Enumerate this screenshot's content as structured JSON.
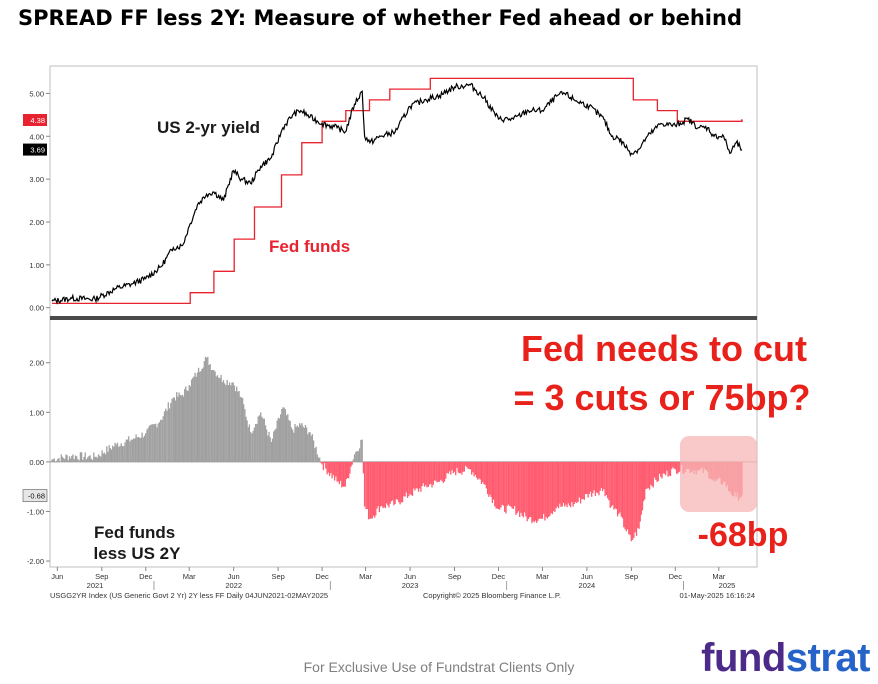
{
  "title": "SPREAD FF less 2Y: Measure of whether Fed ahead or behind",
  "footer": "For Exclusive Use of Fundstrat Clients Only",
  "logo": {
    "part1": "fund",
    "part2": "strat"
  },
  "colors": {
    "fed_funds": "#e8222e",
    "yield": "#000000",
    "positive": "#a0a0a0",
    "negative": "#ff5a6e",
    "annotation": "#e8221b",
    "highlight": "#f5b7b5"
  },
  "chart_data": [
    {
      "type": "line",
      "labels": {
        "yield": "US 2-yr yield",
        "fed_funds": "Fed funds"
      },
      "ylim": [
        -0.1,
        5.5
      ],
      "yticks": [
        "0.00",
        "1.00",
        "2.00",
        "3.00",
        "4.00",
        "5.00"
      ],
      "last_value_tags": [
        {
          "label": "4.38",
          "value": 4.38,
          "color": "#e8222e"
        },
        {
          "label": "3.69",
          "value": 3.69,
          "color": "#000000"
        }
      ],
      "series": [
        {
          "name": "US 2-yr yield",
          "x": [
            "2021-06-04",
            "2021-07-15",
            "2021-09-01",
            "2021-10-15",
            "2021-11-15",
            "2021-12-15",
            "2022-01-15",
            "2022-02-10",
            "2022-03-01",
            "2022-03-15",
            "2022-04-01",
            "2022-04-20",
            "2022-05-05",
            "2022-05-25",
            "2022-06-14",
            "2022-07-01",
            "2022-07-20",
            "2022-08-10",
            "2022-09-01",
            "2022-09-25",
            "2022-10-15",
            "2022-11-01",
            "2022-11-20",
            "2022-12-15",
            "2023-01-15",
            "2023-02-01",
            "2023-02-20",
            "2023-03-08",
            "2023-03-13",
            "2023-03-24",
            "2023-04-15",
            "2023-05-15",
            "2023-06-15",
            "2023-07-15",
            "2023-08-15",
            "2023-09-15",
            "2023-10-18",
            "2023-11-15",
            "2023-12-15",
            "2024-01-15",
            "2024-02-15",
            "2024-03-15",
            "2024-04-15",
            "2024-04-30",
            "2024-05-20",
            "2024-06-20",
            "2024-07-20",
            "2024-08-05",
            "2024-08-20",
            "2024-09-15",
            "2024-10-01",
            "2024-10-15",
            "2024-11-15",
            "2024-12-15",
            "2025-01-10",
            "2025-02-01",
            "2025-02-20",
            "2025-03-05",
            "2025-03-25",
            "2025-04-07",
            "2025-04-20",
            "2025-05-02"
          ],
          "values": [
            0.15,
            0.22,
            0.2,
            0.45,
            0.55,
            0.68,
            0.95,
            1.4,
            1.45,
            1.9,
            2.4,
            2.65,
            2.7,
            2.5,
            3.2,
            3.0,
            2.9,
            3.3,
            3.5,
            4.2,
            4.5,
            4.6,
            4.45,
            4.3,
            4.2,
            4.1,
            4.75,
            5.05,
            4.0,
            3.85,
            4.0,
            4.1,
            4.7,
            4.85,
            4.95,
            5.15,
            5.2,
            4.9,
            4.4,
            4.4,
            4.6,
            4.6,
            4.95,
            5.0,
            4.85,
            4.7,
            4.4,
            4.0,
            3.95,
            3.6,
            3.7,
            3.95,
            4.3,
            4.25,
            4.4,
            4.2,
            4.2,
            4.0,
            4.0,
            3.6,
            3.85,
            3.69
          ]
        },
        {
          "name": "Fed funds",
          "x": [
            "2021-06-04",
            "2022-03-17",
            "2022-05-05",
            "2022-06-16",
            "2022-07-28",
            "2022-09-22",
            "2022-11-03",
            "2022-12-15",
            "2023-02-02",
            "2023-03-23",
            "2023-05-04",
            "2023-07-27",
            "2024-09-19",
            "2024-11-08",
            "2024-12-19",
            "2025-05-02"
          ],
          "values": [
            0.1,
            0.35,
            0.85,
            1.6,
            2.35,
            3.1,
            3.85,
            4.35,
            4.6,
            4.85,
            5.1,
            5.35,
            4.85,
            4.6,
            4.35,
            4.38
          ]
        }
      ]
    },
    {
      "type": "area",
      "labels": {
        "series": "Fed funds\nless US 2Y"
      },
      "ylim": [
        -2.1,
        2.7
      ],
      "yticks": [
        "2.00",
        "1.00",
        "0.00",
        "-1.00",
        "-2.00"
      ],
      "last_value_tags": [
        {
          "label": "-0.68",
          "value": -0.68,
          "color": "#555555"
        }
      ],
      "x_ticks": [
        "Jun",
        "Sep",
        "Dec",
        "Mar",
        "Jun",
        "Sep",
        "Dec",
        "Mar",
        "Jun",
        "Sep",
        "Dec",
        "Mar",
        "Jun",
        "Sep",
        "Dec",
        "Mar"
      ],
      "x_years": [
        "2021",
        "2022",
        "2023",
        "2024",
        "2025"
      ],
      "series": [
        {
          "name": "Fed funds less US 2Y",
          "x": [
            "2021-06-04",
            "2021-07-15",
            "2021-09-01",
            "2021-10-15",
            "2021-11-15",
            "2021-12-15",
            "2022-01-15",
            "2022-02-10",
            "2022-03-01",
            "2022-03-15",
            "2022-04-01",
            "2022-04-20",
            "2022-05-05",
            "2022-05-25",
            "2022-06-14",
            "2022-07-01",
            "2022-07-20",
            "2022-08-10",
            "2022-09-01",
            "2022-09-25",
            "2022-10-15",
            "2022-11-01",
            "2022-11-20",
            "2022-12-15",
            "2023-01-15",
            "2023-02-01",
            "2023-02-20",
            "2023-03-08",
            "2023-03-13",
            "2023-03-24",
            "2023-04-15",
            "2023-05-15",
            "2023-06-15",
            "2023-07-15",
            "2023-08-15",
            "2023-09-15",
            "2023-10-18",
            "2023-11-15",
            "2023-12-15",
            "2024-01-15",
            "2024-02-15",
            "2024-03-15",
            "2024-04-15",
            "2024-04-30",
            "2024-05-20",
            "2024-06-20",
            "2024-07-20",
            "2024-08-05",
            "2024-08-20",
            "2024-09-15",
            "2024-10-01",
            "2024-10-15",
            "2024-11-15",
            "2024-12-15",
            "2025-01-10",
            "2025-02-01",
            "2025-02-20",
            "2025-03-05",
            "2025-03-25",
            "2025-04-07",
            "2025-04-20",
            "2025-05-02"
          ],
          "values": [
            0.05,
            0.12,
            0.1,
            0.35,
            0.45,
            0.58,
            0.85,
            1.3,
            1.35,
            1.55,
            1.8,
            2.1,
            1.85,
            1.65,
            1.6,
            1.3,
            0.6,
            1.0,
            0.4,
            1.1,
            0.65,
            0.75,
            0.6,
            -0.05,
            -0.4,
            -0.5,
            0.15,
            0.45,
            -0.9,
            -1.15,
            -0.9,
            -0.85,
            -0.65,
            -0.5,
            -0.4,
            -0.2,
            -0.15,
            -0.45,
            -0.95,
            -0.95,
            -1.15,
            -1.15,
            -0.9,
            -0.9,
            -0.85,
            -0.65,
            -0.55,
            -0.9,
            -1.05,
            -1.6,
            -1.35,
            -0.55,
            -0.3,
            -0.15,
            -0.15,
            -0.18,
            -0.2,
            -0.4,
            -0.4,
            -0.6,
            -0.7,
            -0.68
          ]
        }
      ]
    }
  ],
  "annotations": {
    "cut_line1": "Fed needs to cut",
    "cut_line2": "= 3 cuts or 75bp?",
    "bp": "-68bp"
  },
  "source_left": "USGG2YR Index (US Generic Govt 2 Yr) 2Y less FF  Daily 04JUN2021-02MAY2025",
  "source_mid": "Copyright© 2025 Bloomberg Finance L.P.",
  "source_right": "01-May-2025 16:16:24"
}
